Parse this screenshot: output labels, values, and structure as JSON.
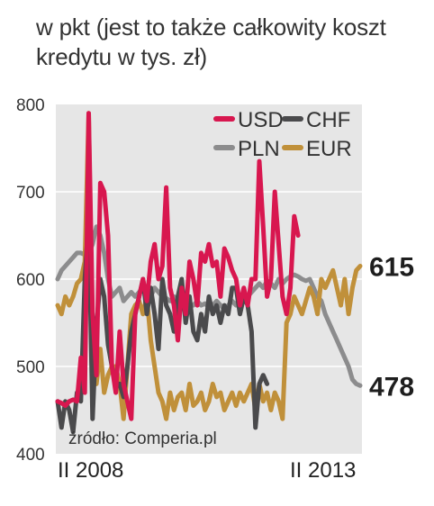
{
  "subtitle": "w pkt (jest to także całkowity koszt kredytu w tys. zł)",
  "source": "źródło: Comperia.pl",
  "chart_data": {
    "type": "line",
    "ylim": [
      400,
      800
    ],
    "y_ticks": [
      "800",
      "700",
      "600",
      "500",
      "400"
    ],
    "x_labels": [
      "II 2008",
      "II 2013"
    ],
    "grid": true,
    "legend_position": "top-right",
    "end_labels": [
      {
        "series": "EUR",
        "text": "615",
        "value": 615
      },
      {
        "series": "PLN",
        "text": "478",
        "value": 478
      }
    ],
    "series": [
      {
        "name": "USD",
        "color": "#d8174f",
        "x": [
          0,
          1,
          2,
          3,
          4,
          5,
          6,
          7,
          8,
          9,
          10,
          11,
          12,
          13,
          14,
          15,
          16,
          17,
          18,
          19,
          20,
          21,
          22,
          23,
          24,
          25,
          26,
          27,
          28,
          29,
          30,
          31,
          32,
          33,
          34,
          35,
          36,
          37,
          38,
          39,
          40,
          41,
          42,
          43,
          44,
          45,
          46,
          47,
          48,
          49,
          50,
          51,
          52,
          53,
          54,
          55,
          56,
          57,
          58,
          59,
          60,
          61,
          62
        ],
        "values": [
          460,
          458,
          455,
          460,
          462,
          460,
          510,
          470,
          790,
          560,
          490,
          710,
          700,
          650,
          500,
          470,
          540,
          480,
          460,
          440,
          560,
          580,
          600,
          575,
          620,
          640,
          600,
          615,
          705,
          590,
          570,
          530,
          590,
          560,
          620,
          600,
          570,
          630,
          620,
          640,
          615,
          620,
          580,
          635,
          625,
          610,
          600,
          570,
          590,
          570,
          600,
          600,
          735,
          660,
          580,
          600,
          700,
          640,
          580,
          560,
          590,
          672,
          650
        ]
      },
      {
        "name": "CHF",
        "color": "#4a4a4c",
        "x": [
          0,
          1,
          2,
          3,
          4,
          5,
          6,
          7,
          8,
          9,
          10,
          11,
          12,
          13,
          14,
          15,
          16,
          17,
          18,
          19,
          20,
          21,
          22,
          23,
          24,
          25,
          26,
          27,
          28,
          29,
          30,
          31,
          32,
          33,
          34,
          35,
          36,
          37,
          38,
          39,
          40,
          41,
          42,
          43,
          44,
          45,
          46,
          47,
          48,
          49,
          50,
          51,
          52,
          53,
          54
        ],
        "values": [
          460,
          430,
          460,
          450,
          425,
          470,
          460,
          600,
          670,
          440,
          545,
          600,
          580,
          525,
          500,
          480,
          480,
          465,
          500,
          540,
          560,
          580,
          600,
          560,
          590,
          560,
          520,
          600,
          570,
          560,
          540,
          580,
          600,
          550,
          580,
          540,
          530,
          560,
          540,
          580,
          560,
          570,
          550,
          570,
          560,
          590,
          590,
          560,
          580,
          570,
          540,
          430,
          480,
          490,
          480
        ]
      },
      {
        "name": "PLN",
        "color": "#8c8c8d",
        "x": [
          0,
          1,
          2,
          3,
          4,
          5,
          6,
          7,
          8,
          9,
          10,
          11,
          12,
          13,
          14,
          15,
          16,
          17,
          18,
          19,
          20,
          21,
          22,
          23,
          24,
          25,
          26,
          27,
          28,
          29,
          30,
          31,
          32,
          33,
          34,
          35,
          36,
          37,
          38,
          39,
          40,
          41,
          42,
          43,
          44,
          45,
          46,
          47,
          48,
          49,
          50,
          51,
          52,
          53,
          54,
          55,
          56,
          57,
          58,
          59,
          60,
          61,
          62,
          63,
          64,
          65,
          66,
          67,
          68,
          69,
          70,
          71,
          72,
          73,
          74,
          75,
          76,
          77,
          78
        ],
        "values": [
          600,
          610,
          615,
          620,
          625,
          630,
          630,
          628,
          630,
          640,
          660,
          650,
          630,
          600,
          580,
          585,
          590,
          575,
          580,
          585,
          580,
          585,
          590,
          585,
          580,
          590,
          585,
          580,
          578,
          575,
          580,
          575,
          570,
          575,
          572,
          570,
          575,
          570,
          572,
          568,
          570,
          575,
          570,
          565,
          570,
          575,
          570,
          580,
          575,
          580,
          585,
          590,
          595,
          590,
          598,
          595,
          590,
          600,
          595,
          600,
          603,
          605,
          603,
          600,
          598,
          600,
          590,
          580,
          575,
          560,
          550,
          540,
          530,
          520,
          510,
          500,
          485,
          480,
          478
        ]
      },
      {
        "name": "EUR",
        "color": "#c0903a",
        "x": [
          0,
          1,
          2,
          3,
          4,
          5,
          6,
          7,
          8,
          9,
          10,
          11,
          12,
          13,
          14,
          15,
          16,
          17,
          18,
          19,
          20,
          21,
          22,
          23,
          24,
          25,
          26,
          27,
          28,
          29,
          30,
          31,
          32,
          33,
          34,
          35,
          36,
          37,
          38,
          39,
          40,
          41,
          42,
          43,
          44,
          45,
          46,
          47,
          48,
          49,
          50,
          51,
          52,
          53,
          54,
          55,
          56,
          57,
          58,
          59,
          60,
          61,
          62,
          63,
          64,
          65,
          66,
          67,
          68,
          69,
          70,
          71,
          72,
          73,
          74,
          75,
          76,
          77,
          78
        ],
        "values": [
          570,
          560,
          580,
          570,
          580,
          595,
          600,
          620,
          790,
          500,
          480,
          520,
          470,
          490,
          500,
          500,
          480,
          440,
          500,
          560,
          570,
          575,
          560,
          580,
          530,
          500,
          470,
          460,
          440,
          470,
          450,
          465,
          470,
          450,
          480,
          455,
          460,
          470,
          450,
          460,
          480,
          465,
          470,
          450,
          460,
          470,
          455,
          470,
          460,
          470,
          480,
          450,
          480,
          460,
          470,
          450,
          470,
          460,
          440,
          550,
          560,
          580,
          570,
          560,
          575,
          590,
          580,
          560,
          600,
          590,
          600,
          610,
          590,
          570,
          600,
          560,
          590,
          610,
          615
        ]
      }
    ]
  }
}
